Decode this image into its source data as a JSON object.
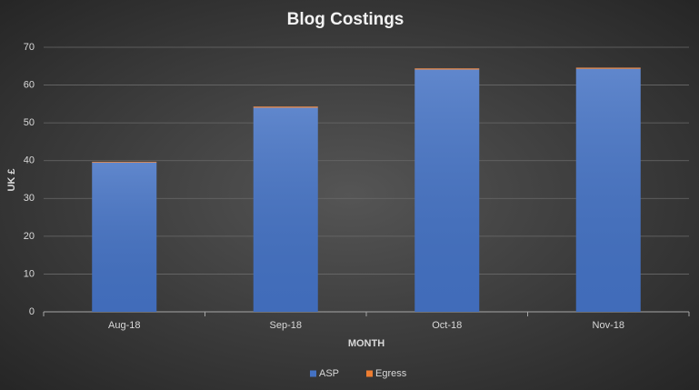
{
  "chart_data": {
    "type": "stacked_bar",
    "title": "Blog Costings",
    "x_label": "MONTH",
    "y_label": "UK £",
    "categories": [
      "Aug-18",
      "Sep-18",
      "Oct-18",
      "Nov-18"
    ],
    "series": [
      {
        "name": "ASP",
        "color": "#4472c4",
        "values": [
          39.5,
          54,
          64.1,
          64.3
        ]
      },
      {
        "name": "Egress",
        "color": "#ed7d31",
        "values": [
          0.2,
          0.3,
          0.3,
          0.3
        ]
      }
    ],
    "ylim": [
      0,
      70
    ],
    "yticks": [
      0,
      10,
      20,
      30,
      40,
      50,
      60,
      70
    ],
    "grid": true,
    "legend": "bottom"
  }
}
